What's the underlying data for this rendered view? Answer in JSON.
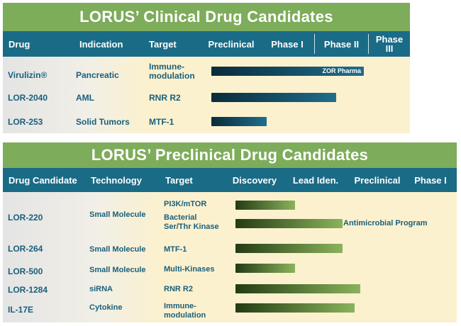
{
  "clinical": {
    "title": "LORUS’ Clinical Drug Candidates",
    "headers": [
      "Drug",
      "Indication",
      "Target",
      "Preclinical",
      "Phase I",
      "Phase II",
      "Phase\nIII"
    ],
    "rows": [
      {
        "drug": "Virulizin®",
        "indication": "Pancreatic",
        "target": "Immune-\nmodulation",
        "bar_label": "ZOR Pharma",
        "progress_phases": 2.75
      },
      {
        "drug": "LOR-2040",
        "indication": "AML",
        "target": "RNR R2",
        "progress_phases": 2.25
      },
      {
        "drug": "LOR-253",
        "indication": "Solid Tumors",
        "target": "MTF-1",
        "progress_phases": 1.0
      }
    ]
  },
  "preclinical": {
    "title": "LORUS’ Preclinical Drug Candidates",
    "headers": [
      "Drug Candidate",
      "Technology",
      "Target",
      "Discovery",
      "Lead Iden.",
      "Preclinical",
      "Phase I"
    ],
    "rows": [
      {
        "drug": "LOR-220",
        "technology": "Small Molecule",
        "targets": [
          {
            "target": "PI3K/mTOR",
            "progress_phases": 1.0
          },
          {
            "target": "Bacterial\nSer/Thr Kinase",
            "progress_phases": 1.8,
            "note": "Antimicrobial Program"
          }
        ]
      },
      {
        "drug": "LOR-264",
        "technology": "Small Molecule",
        "targets": [
          {
            "target": "MTF-1",
            "progress_phases": 1.8
          }
        ]
      },
      {
        "drug": "LOR-500",
        "technology": "Small Molecule",
        "targets": [
          {
            "target": "Multi-Kinases",
            "progress_phases": 1.0
          }
        ]
      },
      {
        "drug": "LOR-1284",
        "technology": "siRNA",
        "targets": [
          {
            "target": "RNR R2",
            "progress_phases": 2.1
          }
        ]
      },
      {
        "drug": "IL-17E",
        "technology": "Cytokine",
        "targets": [
          {
            "target": "Immune-\nmodulation",
            "progress_phases": 2.0
          }
        ]
      }
    ]
  },
  "colors": {
    "title_bg": "#7dac5a",
    "header_bg": "#1a6b86",
    "body_bg": "#fbf1cf",
    "text": "#1a5f7c",
    "clinical_bar": "#0a2b3b",
    "preclinical_bar": "#5a8a3a"
  }
}
